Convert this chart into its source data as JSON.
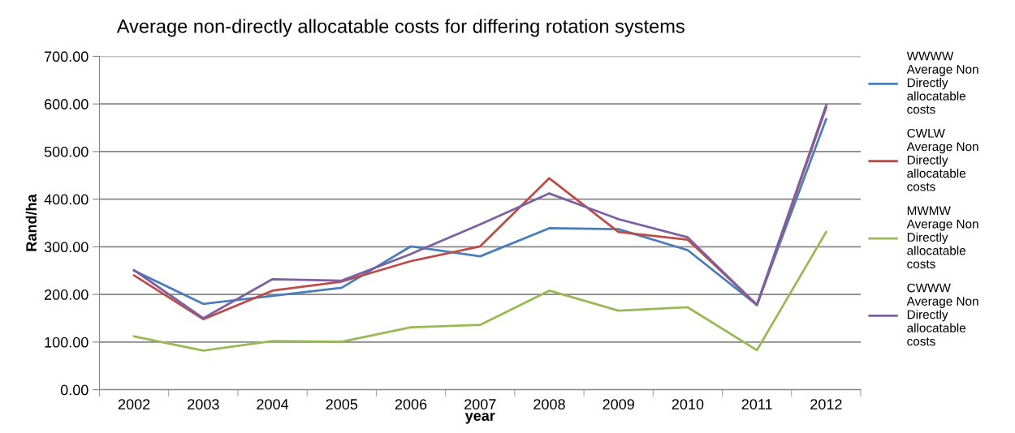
{
  "chart_data": {
    "type": "line",
    "title": "Average non-directly allocatable costs for differing rotation systems",
    "xlabel": "year",
    "ylabel": "Rand/ha",
    "categories": [
      "2002",
      "2003",
      "2004",
      "2005",
      "2006",
      "2007",
      "2008",
      "2009",
      "2010",
      "2011",
      "2012"
    ],
    "series": [
      {
        "name": "WWWW Average Non Directly allocatable costs",
        "color": "#4a7ebb",
        "values": [
          250,
          180,
          197,
          214,
          301,
          280,
          339,
          337,
          293,
          178,
          568
        ]
      },
      {
        "name": "CWLW Average Non Directly allocatable costs",
        "color": "#be4b48",
        "values": [
          240,
          148,
          208,
          227,
          270,
          301,
          444,
          331,
          315,
          178,
          592
        ]
      },
      {
        "name": "MWMW Average Non Directly allocatable costs",
        "color": "#98b954",
        "values": [
          112,
          82,
          102,
          101,
          131,
          136,
          208,
          166,
          173,
          83,
          331
        ]
      },
      {
        "name": "CWWW Average Non Directly allocatable costs",
        "color": "#7d60a0",
        "values": [
          251,
          150,
          232,
          229,
          285,
          347,
          412,
          358,
          320,
          178,
          597
        ]
      }
    ],
    "ylim": [
      0,
      700
    ],
    "yticks": [
      {
        "value": 0,
        "label": "0.00"
      },
      {
        "value": 100,
        "label": "100.00"
      },
      {
        "value": 200,
        "label": "200.00"
      },
      {
        "value": 300,
        "label": "300.00"
      },
      {
        "value": 400,
        "label": "400.00"
      },
      {
        "value": 500,
        "label": "500.00"
      },
      {
        "value": 600,
        "label": "600.00"
      },
      {
        "value": 700,
        "label": "700.00"
      }
    ],
    "grid": "y",
    "legend": "right",
    "marker": "none",
    "line_style": "solid"
  }
}
